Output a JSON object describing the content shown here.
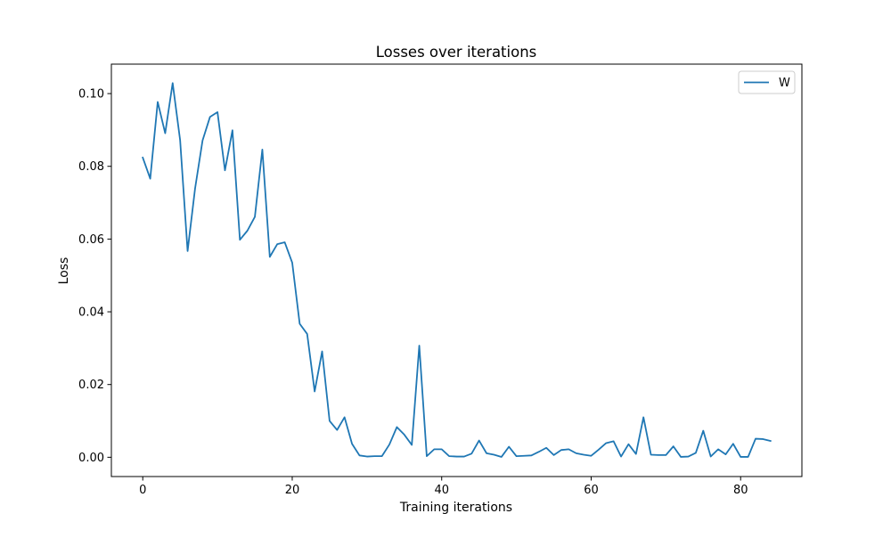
{
  "chart_data": {
    "type": "line",
    "title": "Losses over iterations",
    "xlabel": "Training iterations",
    "ylabel": "Loss",
    "xlim": [
      -4.2,
      88.2
    ],
    "ylim": [
      -0.0053,
      0.1081
    ],
    "xticks": [
      0,
      20,
      40,
      60,
      80
    ],
    "xtick_labels": [
      "0",
      "20",
      "40",
      "60",
      "80"
    ],
    "yticks": [
      0.0,
      0.02,
      0.04,
      0.06,
      0.08,
      0.1
    ],
    "ytick_labels": [
      "0.00",
      "0.02",
      "0.04",
      "0.06",
      "0.08",
      "0.10"
    ],
    "grid": false,
    "legend_position": "upper right",
    "series": [
      {
        "name": "W",
        "color": "#1f77b4",
        "x": [
          0,
          1,
          2,
          3,
          4,
          5,
          6,
          7,
          8,
          9,
          10,
          11,
          12,
          13,
          14,
          15,
          16,
          17,
          18,
          19,
          20,
          21,
          22,
          23,
          24,
          25,
          26,
          27,
          28,
          29,
          30,
          31,
          32,
          33,
          34,
          35,
          36,
          37,
          38,
          39,
          40,
          41,
          42,
          43,
          44,
          45,
          46,
          47,
          48,
          49,
          50,
          51,
          52,
          53,
          54,
          55,
          56,
          57,
          58,
          59,
          60,
          61,
          62,
          63,
          64,
          65,
          66,
          67,
          68,
          69,
          70,
          71,
          72,
          73,
          74,
          75,
          76,
          77,
          78,
          79,
          80,
          81,
          82,
          83,
          84
        ],
        "y": [
          0.0824,
          0.0766,
          0.0977,
          0.0891,
          0.1029,
          0.0872,
          0.0567,
          0.0739,
          0.0871,
          0.0936,
          0.0949,
          0.0789,
          0.0899,
          0.0598,
          0.0623,
          0.0661,
          0.0846,
          0.0551,
          0.0586,
          0.0591,
          0.0535,
          0.0367,
          0.0339,
          0.0181,
          0.0291,
          0.01,
          0.0075,
          0.011,
          0.0037,
          0.0005,
          0.0002,
          0.0003,
          0.0003,
          0.0035,
          0.0083,
          0.0062,
          0.0034,
          0.0307,
          0.0003,
          0.0022,
          0.0022,
          0.0003,
          0.0002,
          0.0002,
          0.001,
          0.0046,
          0.0011,
          0.0007,
          0.0001,
          0.0029,
          0.0003,
          0.0004,
          0.0005,
          0.0015,
          0.0026,
          0.0006,
          0.002,
          0.0022,
          0.0011,
          0.0007,
          0.0004,
          0.0021,
          0.0039,
          0.0044,
          0.0002,
          0.0036,
          0.0009,
          0.011,
          0.0007,
          0.0006,
          0.0006,
          0.003,
          0.0001,
          0.0002,
          0.0012,
          0.0073,
          0.0002,
          0.0022,
          0.0008,
          0.0037,
          0.0001,
          0.0001,
          0.0051,
          0.005,
          0.0045
        ]
      }
    ]
  }
}
